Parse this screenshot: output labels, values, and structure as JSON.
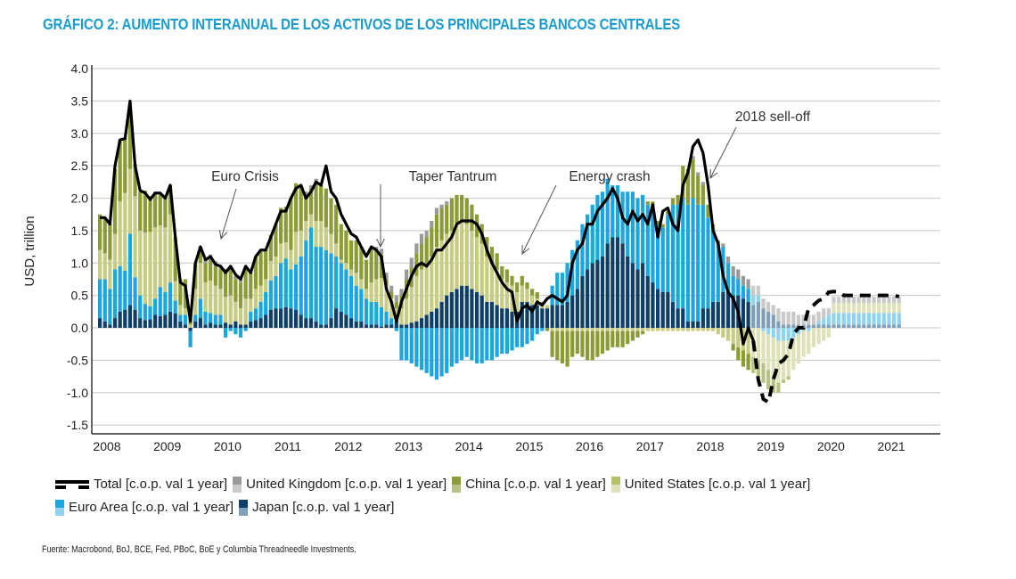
{
  "title": "GRÁFICO 2: AUMENTO INTERANUAL DE LOS ACTIVOS DE LOS PRINCIPALES BANCOS CENTRALES",
  "source": "Fuente: Macrobond, BoJ, BCE, Fed, PBoC, BoE y Columbia Threadneedle Investments.",
  "colors": {
    "title": "#1a9bd1",
    "japan": "#0d3f68",
    "japan_light": "#7f9fb8",
    "euro": "#1aa7e0",
    "euro_light": "#8fd3f0",
    "us": "#c8cc82",
    "us_light": "#dfe2b8",
    "china": "#8c9b35",
    "china_light": "#b9c182",
    "uk": "#9a9a9a",
    "uk_light": "#c9c9c9",
    "total": "#000000"
  },
  "chart_data": {
    "type": "bar",
    "subtype": "stacked bar with total line",
    "title": "GRÁFICO 2: AUMENTO INTERANUAL DE LOS ACTIVOS DE LOS PRINCIPALES BANCOS CENTRALES",
    "xlabel": "",
    "ylabel": "USD, trillion",
    "ylim": [
      -1.5,
      4.0
    ],
    "yticks": [
      4.0,
      3.5,
      3.0,
      2.5,
      2.0,
      1.5,
      1.0,
      0.5,
      0.0,
      -0.5,
      -1.0,
      -1.5
    ],
    "ytick_labels": [
      "4.0",
      "3.5",
      "3.0",
      "2.5",
      "2.0",
      "1.5",
      "1.0",
      "0.5",
      "0.0",
      "-0.5",
      "-1.0",
      "-1.5"
    ],
    "xlim": [
      2007.9,
      2022.0
    ],
    "xticks": [
      2008,
      2009,
      2010,
      2011,
      2012,
      2013,
      2014,
      2015,
      2016,
      2017,
      2018,
      2019,
      2020,
      2021
    ],
    "xtick_labels": [
      "2008",
      "2009",
      "2010",
      "2011",
      "2012",
      "2013",
      "2014",
      "2015",
      "2016",
      "2017",
      "2018",
      "2019",
      "2020",
      "2021"
    ],
    "grid": true,
    "legend_position": "bottom",
    "forecast_start": 2018.75,
    "legend": [
      {
        "key": "total",
        "label": "Total [c.o.p. val 1 year]",
        "kind": "line"
      },
      {
        "key": "uk",
        "label": "United Kingdom [c.o.p. val 1 year]",
        "kind": "bar"
      },
      {
        "key": "china",
        "label": "China [c.o.p. val 1 year]",
        "kind": "bar"
      },
      {
        "key": "us",
        "label": "United States [c.o.p. val 1 year]",
        "kind": "bar"
      },
      {
        "key": "euro",
        "label": "Euro Area [c.o.p. val 1 year]",
        "kind": "bar"
      },
      {
        "key": "japan",
        "label": "Japan [c.o.p. val 1 year]",
        "kind": "bar"
      }
    ],
    "annotations": [
      {
        "text": "Euro Crisis",
        "x": 2010.0,
        "y": 2.3,
        "arrow_to": [
          2010.05,
          1.4
        ]
      },
      {
        "text": "Taper Tantrum",
        "x": 2013.8,
        "y": 2.3,
        "arrow_to": [
          2012.7,
          1.25
        ]
      },
      {
        "text": "Energy crash",
        "x": 2016.4,
        "y": 2.3,
        "arrow_to": [
          2014.95,
          1.15
        ]
      },
      {
        "text": "2018 sell-off",
        "x": 2018.6,
        "y": 3.25,
        "arrow_to": [
          2018.0,
          2.3
        ]
      }
    ],
    "x_start": 2008.0,
    "x_step": 0.0833,
    "total": [
      1.7,
      1.7,
      1.6,
      2.5,
      2.9,
      2.92,
      3.5,
      2.5,
      2.12,
      2.08,
      1.98,
      2.08,
      2.08,
      2.0,
      2.2,
      1.4,
      0.7,
      0.65,
      0.1,
      1.0,
      1.25,
      1.05,
      1.1,
      0.98,
      0.95,
      0.85,
      0.95,
      0.82,
      0.75,
      0.95,
      0.85,
      1.1,
      1.2,
      1.2,
      1.4,
      1.6,
      1.8,
      1.8,
      2.0,
      2.15,
      2.2,
      2.0,
      2.1,
      2.25,
      2.2,
      2.5,
      2.1,
      2.0,
      1.75,
      1.6,
      1.45,
      1.4,
      1.25,
      1.1,
      1.25,
      1.2,
      1.1,
      0.6,
      0.4,
      0.1,
      0.4,
      0.6,
      0.8,
      0.95,
      1.0,
      0.95,
      1.05,
      1.2,
      1.2,
      1.3,
      1.4,
      1.6,
      1.65,
      1.65,
      1.65,
      1.6,
      1.45,
      1.2,
      1.0,
      0.85,
      0.7,
      0.6,
      0.55,
      0.1,
      0.3,
      0.35,
      0.25,
      0.4,
      0.35,
      0.45,
      0.5,
      0.45,
      0.4,
      0.5,
      1.0,
      1.2,
      1.3,
      1.6,
      1.6,
      1.8,
      1.9,
      2.0,
      2.15,
      2.0,
      1.7,
      1.6,
      1.8,
      1.65,
      1.75,
      1.6,
      1.9,
      1.4,
      1.8,
      1.85,
      1.6,
      1.5,
      2.2,
      2.4,
      2.8,
      2.9,
      2.7,
      2.2,
      1.5,
      1.3,
      0.8,
      0.55,
      0.45,
      0.25,
      -0.25,
      0.0,
      -0.2,
      -0.8,
      -1.1,
      -1.15,
      -0.8,
      -0.55,
      -0.5,
      -0.4,
      -0.1,
      0.0,
      0.0,
      0.3,
      0.35,
      0.42,
      0.45,
      0.55,
      0.56,
      0.55,
      0.5,
      0.5,
      0.5,
      0.5,
      0.5,
      0.5,
      0.5,
      0.5,
      0.5,
      0.5,
      0.5,
      0.48
    ],
    "series": [
      {
        "name": "Japan",
        "key": "japan",
        "values": [
          0.15,
          0.1,
          0.05,
          0.15,
          0.25,
          0.28,
          0.35,
          0.28,
          0.15,
          0.12,
          0.13,
          0.2,
          0.18,
          0.2,
          0.25,
          0.22,
          0.1,
          0.05,
          -0.05,
          0.1,
          0.15,
          0.05,
          0.08,
          0.05,
          0.05,
          0.08,
          0.05,
          0.1,
          0.05,
          0.05,
          0.1,
          0.12,
          0.15,
          0.2,
          0.28,
          0.3,
          0.3,
          0.32,
          0.3,
          0.28,
          0.2,
          0.15,
          0.15,
          0.1,
          0.05,
          0.05,
          0.15,
          0.3,
          0.25,
          0.2,
          0.15,
          0.1,
          0.1,
          0.05,
          0.05,
          0.05,
          0.02,
          0.05,
          0.05,
          0.1,
          0.05,
          0.05,
          0.08,
          0.1,
          0.15,
          0.2,
          0.25,
          0.3,
          0.4,
          0.5,
          0.55,
          0.6,
          0.65,
          0.65,
          0.6,
          0.55,
          0.5,
          0.4,
          0.4,
          0.35,
          0.3,
          0.3,
          0.25,
          0.25,
          0.4,
          0.4,
          0.35,
          0.35,
          0.3,
          0.3,
          0.35,
          0.35,
          0.35,
          0.4,
          0.5,
          0.6,
          0.8,
          0.9,
          1.0,
          1.05,
          1.1,
          1.3,
          1.4,
          1.4,
          1.3,
          1.1,
          1.0,
          0.9,
          1.0,
          0.8,
          0.7,
          0.6,
          0.55,
          0.55,
          0.4,
          0.3,
          0.3,
          0.1,
          0.1,
          0.1,
          0.3,
          0.3,
          0.4,
          0.4,
          0.55,
          0.55,
          0.5,
          0.5,
          0.45,
          0.4,
          0.35,
          0.4,
          0.3,
          0.25,
          0.2,
          0.1,
          0.05,
          0.05,
          0.05,
          0.05,
          0.05,
          0.05,
          0.05,
          0.05,
          0.05,
          0.05,
          0.05,
          0.05,
          0.05,
          0.05,
          0.05,
          0.05,
          0.05,
          0.05,
          0.05,
          0.05,
          0.05,
          0.05,
          0.05,
          0.05,
          0.05,
          0.05,
          0.05,
          0.05
        ]
      },
      {
        "name": "Euro Area",
        "key": "euro",
        "values": [
          0.6,
          0.65,
          0.55,
          0.75,
          0.7,
          0.6,
          1.1,
          0.5,
          0.35,
          0.25,
          0.2,
          0.25,
          0.45,
          0.35,
          0.45,
          0.2,
          0.1,
          0.15,
          -0.25,
          0.1,
          0.3,
          0.2,
          0.15,
          0.15,
          0.15,
          -0.15,
          -0.05,
          -0.1,
          -0.15,
          -0.05,
          0.15,
          0.18,
          0.25,
          0.35,
          0.45,
          0.5,
          0.7,
          0.75,
          0.6,
          0.7,
          0.9,
          1.2,
          1.4,
          1.15,
          1.2,
          1.15,
          1.0,
          0.8,
          0.75,
          0.7,
          0.65,
          0.55,
          0.5,
          0.4,
          0.35,
          0.35,
          0.3,
          0.2,
          0.1,
          -0.05,
          -0.5,
          -0.5,
          -0.55,
          -0.6,
          -0.65,
          -0.7,
          -0.75,
          -0.8,
          -0.75,
          -0.7,
          -0.6,
          -0.55,
          -0.5,
          -0.45,
          -0.5,
          -0.55,
          -0.55,
          -0.5,
          -0.5,
          -0.45,
          -0.4,
          -0.4,
          -0.35,
          -0.3,
          -0.3,
          -0.25,
          -0.2,
          -0.1,
          -0.05,
          0.0,
          0.3,
          0.5,
          0.5,
          0.6,
          0.7,
          0.75,
          0.8,
          0.85,
          0.9,
          1.0,
          1.0,
          1.0,
          0.8,
          0.8,
          0.8,
          1.0,
          1.1,
          1.1,
          1.05,
          1.1,
          1.2,
          1.0,
          1.0,
          1.2,
          1.5,
          1.6,
          1.7,
          1.8,
          1.9,
          1.8,
          1.6,
          1.4,
          1.1,
          0.9,
          0.7,
          0.45,
          0.3,
          0.25,
          0.2,
          0.2,
          0.15,
          0.1,
          -0.05,
          -0.1,
          -0.15,
          -0.2,
          -0.2,
          -0.2,
          -0.15,
          -0.1,
          -0.05,
          -0.05,
          0.0,
          0.05,
          0.1,
          0.15,
          0.18,
          0.18,
          0.18,
          0.18,
          0.18,
          0.18,
          0.18,
          0.18,
          0.18,
          0.18,
          0.18,
          0.18,
          0.18,
          0.18,
          0.18,
          0.18,
          0.18,
          0.18,
          0.18,
          0.18
        ]
      },
      {
        "name": "United States",
        "key": "us",
        "values": [
          0.45,
          0.4,
          0.45,
          0.55,
          1.0,
          1.2,
          1.0,
          1.25,
          1.0,
          1.1,
          1.15,
          1.1,
          0.95,
          1.0,
          1.05,
          0.3,
          0.15,
          0.1,
          0.05,
          0.4,
          0.55,
          0.45,
          0.5,
          0.45,
          0.4,
          0.4,
          0.45,
          0.3,
          0.25,
          0.4,
          0.2,
          0.3,
          0.25,
          0.2,
          0.3,
          0.3,
          0.3,
          0.25,
          0.3,
          0.5,
          0.4,
          0.3,
          0.2,
          0.4,
          0.4,
          0.35,
          0.3,
          0.2,
          0.05,
          0.1,
          0.1,
          0.2,
          0.15,
          0.15,
          0.3,
          0.35,
          0.45,
          0.4,
          0.3,
          0.2,
          0.25,
          0.4,
          0.55,
          0.7,
          0.75,
          0.75,
          0.85,
          0.95,
          0.95,
          0.95,
          0.95,
          1.0,
          1.0,
          0.95,
          0.9,
          0.85,
          0.8,
          0.7,
          0.6,
          0.55,
          0.45,
          0.4,
          0.4,
          0.3,
          0.25,
          0.2,
          0.15,
          0.1,
          0.05,
          0.05,
          -0.05,
          -0.05,
          -0.05,
          -0.05,
          -0.05,
          -0.05,
          -0.05,
          -0.05,
          -0.05,
          -0.05,
          -0.05,
          -0.05,
          -0.05,
          -0.05,
          -0.05,
          -0.05,
          -0.05,
          -0.05,
          -0.05,
          -0.05,
          -0.05,
          -0.05,
          -0.05,
          -0.05,
          -0.05,
          -0.05,
          -0.05,
          -0.05,
          -0.05,
          -0.05,
          -0.05,
          -0.05,
          -0.05,
          -0.1,
          -0.15,
          -0.2,
          -0.25,
          -0.3,
          -0.35,
          -0.4,
          -0.45,
          -0.5,
          -0.5,
          -0.55,
          -0.6,
          -0.65,
          -0.6,
          -0.55,
          -0.5,
          -0.45,
          -0.4,
          -0.35,
          -0.3,
          -0.25,
          -0.2,
          -0.15,
          0.15,
          0.15,
          0.15,
          0.15,
          0.15,
          0.15,
          0.15,
          0.15,
          0.15,
          0.15,
          0.15,
          0.15,
          0.15,
          0.15,
          0.15,
          0.15,
          0.15,
          0.15,
          0.15,
          0.15
        ]
      },
      {
        "name": "China",
        "key": "china",
        "values": [
          0.55,
          0.55,
          0.55,
          1.0,
          0.95,
          0.85,
          0.95,
          0.5,
          0.6,
          0.65,
          0.55,
          0.55,
          0.5,
          0.45,
          0.45,
          0.68,
          0.4,
          0.45,
          0.25,
          0.38,
          0.25,
          0.3,
          0.32,
          0.3,
          0.3,
          0.38,
          0.4,
          0.35,
          0.4,
          0.45,
          0.4,
          0.5,
          0.55,
          0.45,
          0.4,
          0.5,
          0.55,
          0.55,
          0.8,
          0.75,
          0.7,
          0.4,
          0.4,
          0.6,
          0.55,
          0.6,
          0.55,
          0.6,
          0.55,
          0.5,
          0.45,
          0.5,
          0.5,
          0.45,
          0.55,
          0.45,
          0.35,
          0.1,
          0.1,
          0.1,
          0.2,
          0.3,
          0.3,
          0.35,
          0.4,
          0.45,
          0.45,
          0.5,
          0.5,
          0.45,
          0.5,
          0.45,
          0.4,
          0.4,
          0.4,
          0.35,
          0.3,
          0.3,
          0.25,
          0.25,
          0.2,
          0.2,
          0.15,
          0.15,
          0.15,
          0.1,
          0.1,
          0.1,
          0.05,
          -0.05,
          -0.4,
          -0.45,
          -0.5,
          -0.55,
          -0.4,
          -0.35,
          -0.4,
          -0.45,
          -0.45,
          -0.4,
          -0.35,
          -0.3,
          -0.25,
          -0.25,
          -0.25,
          -0.2,
          -0.15,
          -0.1,
          -0.05,
          0.05,
          0.05,
          0.05,
          0.05,
          0.05,
          0.1,
          0.15,
          0.5,
          0.55,
          0.6,
          0.45,
          0.3,
          0.2,
          0.1,
          0.05,
          0.0,
          0.0,
          -0.1,
          -0.2,
          -0.25,
          -0.25,
          -0.25,
          -0.25,
          -0.3,
          -0.3,
          -0.25,
          -0.15,
          -0.05,
          -0.05,
          0.0,
          0.0,
          0.0,
          0.0,
          0.0,
          0.0,
          0.0,
          0.0,
          0.0,
          0.0,
          0.0,
          0.0,
          0.0,
          0.0,
          0.0,
          0.0,
          0.0,
          0.0,
          0.0,
          0.0,
          0.0,
          0.0,
          0.0,
          0.0,
          0.0,
          0.0,
          0.0,
          0.0
        ]
      },
      {
        "name": "United Kingdom",
        "key": "uk",
        "values": [
          0.0,
          0.0,
          0.0,
          0.0,
          0.0,
          0.0,
          0.0,
          0.0,
          0.0,
          0.0,
          0.0,
          0.0,
          0.0,
          0.0,
          0.0,
          0.0,
          0.0,
          0.0,
          0.0,
          0.0,
          0.0,
          0.05,
          0.08,
          0.08,
          0.05,
          0.05,
          0.05,
          0.05,
          0.05,
          0.05,
          0.0,
          0.0,
          0.0,
          0.0,
          0.0,
          0.0,
          0.0,
          0.0,
          0.0,
          0.0,
          0.0,
          0.05,
          0.05,
          0.05,
          0.0,
          0.0,
          0.0,
          0.0,
          0.0,
          0.0,
          0.0,
          0.0,
          0.0,
          0.0,
          0.0,
          0.05,
          0.1,
          0.1,
          0.1,
          0.1,
          0.1,
          0.15,
          0.15,
          0.15,
          0.15,
          0.1,
          0.1,
          0.1,
          0.05,
          0.05,
          0.0,
          0.0,
          0.0,
          0.0,
          0.0,
          0.0,
          0.0,
          0.0,
          0.0,
          0.0,
          0.0,
          0.0,
          0.0,
          0.0,
          0.0,
          0.0,
          0.0,
          0.0,
          0.0,
          0.0,
          0.0,
          0.0,
          0.0,
          0.0,
          0.0,
          0.0,
          0.0,
          0.0,
          0.0,
          0.0,
          0.0,
          0.0,
          0.0,
          0.0,
          0.0,
          0.0,
          0.0,
          0.0,
          0.0,
          0.0,
          0.0,
          0.0,
          0.0,
          0.0,
          0.0,
          0.0,
          0.0,
          0.0,
          0.05,
          0.05,
          0.05,
          0.0,
          0.0,
          0.0,
          0.05,
          0.1,
          0.15,
          0.15,
          0.15,
          0.15,
          0.15,
          0.15,
          0.15,
          0.15,
          0.15,
          0.2,
          0.2,
          0.2,
          0.2,
          0.15,
          0.15,
          0.15,
          0.15,
          0.15,
          0.15,
          0.1,
          0.1,
          0.1,
          0.1,
          0.1,
          0.1,
          0.1,
          0.1,
          0.1,
          0.1,
          0.1,
          0.1,
          0.1,
          0.1,
          0.1,
          0.1,
          0.1,
          0.1,
          0.1,
          0.1
        ]
      }
    ]
  }
}
